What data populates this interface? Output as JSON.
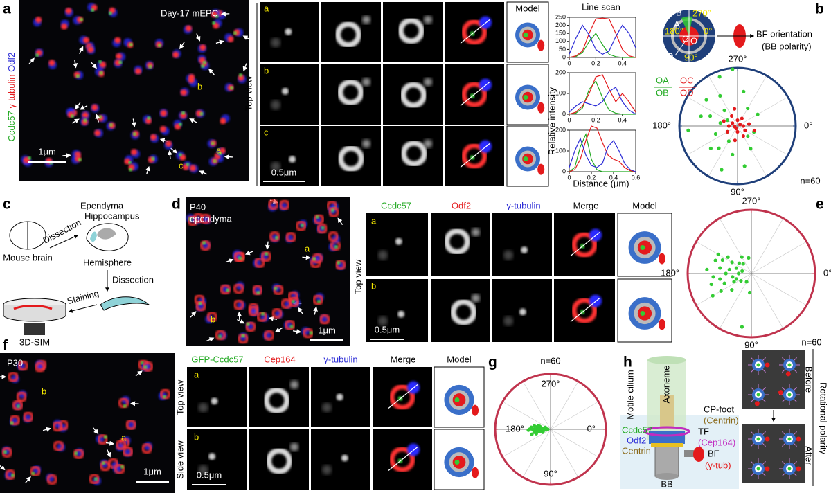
{
  "panel_a": {
    "label": "a",
    "stains": [
      "Ccdc57",
      "γ-tubulin",
      "Odf2"
    ],
    "title": "Day-17 mEPC",
    "cell_labels": [
      "b",
      "a",
      "c"
    ],
    "scale_bar": "1μm",
    "view": "Top view",
    "rows": [
      "a",
      "b",
      "c"
    ],
    "inset_scale_bar": "0.5μm",
    "model": "Model",
    "line_scan": {
      "title": "Line scan",
      "y_label": "Relative intensity",
      "x_label": "Distance (μm)",
      "charts": [
        {
          "type": "line",
          "x": [
            0,
            0.05,
            0.1,
            0.15,
            0.2,
            0.25,
            0.3,
            0.35,
            0.4,
            0.45,
            0.5
          ],
          "xlim": [
            0,
            0.5
          ],
          "xticks": [
            0,
            0.2,
            0.4
          ],
          "ylim": [
            0,
            250
          ],
          "yticks": [
            0,
            50,
            100,
            150,
            200,
            250
          ],
          "series": [
            {
              "color": "#22aa22",
              "values": [
                0,
                5,
                30,
                100,
                150,
                80,
                20,
                5,
                0,
                0,
                0
              ]
            },
            {
              "color": "#e41a1c",
              "values": [
                0,
                10,
                40,
                150,
                240,
                245,
                240,
                150,
                50,
                10,
                0
              ]
            },
            {
              "color": "#2b2bd6",
              "values": [
                20,
                120,
                200,
                140,
                50,
                20,
                40,
                130,
                200,
                150,
                60
              ]
            }
          ]
        },
        {
          "type": "line",
          "x": [
            0,
            0.05,
            0.1,
            0.15,
            0.2,
            0.25,
            0.3,
            0.35,
            0.4,
            0.45,
            0.5
          ],
          "xlim": [
            0,
            0.5
          ],
          "xticks": [
            0,
            0.2,
            0.4
          ],
          "ylim": [
            0,
            200
          ],
          "yticks": [
            0,
            100,
            200
          ],
          "series": [
            {
              "color": "#22aa22",
              "values": [
                0,
                5,
                30,
                120,
                160,
                80,
                20,
                5,
                0,
                0,
                0
              ]
            },
            {
              "color": "#e41a1c",
              "values": [
                0,
                10,
                40,
                100,
                180,
                190,
                120,
                60,
                100,
                60,
                10
              ]
            },
            {
              "color": "#2b2bd6",
              "values": [
                10,
                40,
                60,
                50,
                40,
                60,
                110,
                130,
                60,
                20,
                0
              ]
            }
          ]
        },
        {
          "type": "line",
          "x": [
            0,
            0.05,
            0.1,
            0.15,
            0.2,
            0.25,
            0.3,
            0.35,
            0.4,
            0.45,
            0.5,
            0.55,
            0.6
          ],
          "xlim": [
            0,
            0.6
          ],
          "xticks": [
            0,
            0.2,
            0.4,
            0.6
          ],
          "ylim": [
            0,
            200
          ],
          "yticks": [
            0,
            100,
            200
          ],
          "series": [
            {
              "color": "#22aa22",
              "values": [
                0,
                20,
                120,
                180,
                60,
                10,
                0,
                0,
                0,
                0,
                0,
                0,
                0
              ]
            },
            {
              "color": "#e41a1c",
              "values": [
                0,
                10,
                60,
                150,
                220,
                210,
                140,
                80,
                60,
                50,
                20,
                5,
                0
              ]
            },
            {
              "color": "#2b2bd6",
              "values": [
                20,
                100,
                160,
                80,
                30,
                20,
                40,
                120,
                150,
                100,
                40,
                10,
                0
              ]
            }
          ]
        }
      ]
    }
  },
  "panel_b": {
    "label": "b",
    "diagram": {
      "angles": [
        "270°",
        "180°",
        "0°",
        "90°"
      ],
      "points": [
        "B",
        "A",
        "C",
        "O",
        "D"
      ],
      "caption": [
        "BF orientation",
        "(BB polarity)"
      ]
    },
    "legend": [
      {
        "numerator": "OA",
        "denominator": "OB"
      },
      {
        "numerator": "OC",
        "denominator": "OD"
      }
    ],
    "chart": {
      "type": "polar-scatter",
      "ring_color": "#1f3f7a",
      "rlim": [
        0,
        1
      ],
      "annotation": "n=60",
      "angle_ticks": [
        {
          "value": 270,
          "label": "270°"
        },
        {
          "value": 180,
          "label": "180°"
        },
        {
          "value": 0,
          "label": "0°"
        },
        {
          "value": 90,
          "label": "90°"
        }
      ],
      "series": [
        {
          "color": "#33cc33",
          "angle": [
            200,
            220,
            160,
            240,
            130,
            300,
            20,
            45,
            100,
            110,
            175,
            190,
            250,
            280,
            330,
            60,
            80,
            150,
            210,
            230,
            120,
            140,
            195,
            265
          ],
          "radius": [
            0.5,
            0.7,
            0.4,
            0.6,
            0.5,
            0.35,
            0.3,
            0.25,
            0.5,
            0.8,
            0.85,
            0.3,
            0.9,
            0.6,
            0.4,
            0.45,
            0.7,
            0.2,
            0.2,
            0.35,
            0.3,
            0.6,
            0.65,
            0.98
          ]
        },
        {
          "color": "#e41a1c",
          "angle": [
            0,
            30,
            60,
            90,
            120,
            150,
            180,
            210,
            240,
            270,
            300,
            330,
            15,
            100,
            200,
            260,
            170,
            350
          ],
          "radius": [
            0.1,
            0.15,
            0.2,
            0.1,
            0.05,
            0.2,
            0.15,
            0.1,
            0.2,
            0.1,
            0.15,
            0.05,
            0.3,
            0.25,
            0.25,
            0.3,
            0.05,
            0.2
          ]
        }
      ]
    }
  },
  "panel_c": {
    "label": "c",
    "mouse_brain": "Mouse brain",
    "dissection_1": "Dissection",
    "ependyma": "Ependyma",
    "hippocampus": "Hippocampus",
    "hemisphere": "Hemisphere",
    "dissection_2": "Dissection",
    "staining": "Staining",
    "microscopy": "3D-SIM"
  },
  "panel_d": {
    "label": "d",
    "title": [
      "P40",
      "ependyma"
    ],
    "cell_labels": [
      "a",
      "b"
    ],
    "scale_bar": "1μm",
    "columns": [
      "Ccdc57",
      "Odf2",
      "γ-tubulin",
      "Merge",
      "Model"
    ],
    "view": "Top view",
    "rows": [
      "a",
      "b"
    ],
    "inset_scale_bar": "0.5μm"
  },
  "panel_e": {
    "label": "e",
    "chart": {
      "type": "polar-scatter",
      "ring_color": "#c0334d",
      "rlim": [
        0,
        1
      ],
      "annotation": "n=60",
      "angle_ticks": [
        {
          "value": 270,
          "label": "270°"
        },
        {
          "value": 180,
          "label": "180°"
        },
        {
          "value": 0,
          "label": "0°"
        },
        {
          "value": 90,
          "label": "90°"
        }
      ],
      "series": [
        {
          "color": "#33cc33",
          "angle": [
            180,
            190,
            170,
            200,
            160,
            210,
            150,
            220,
            140,
            230,
            185,
            175,
            195,
            165,
            205,
            155,
            215,
            145,
            120,
            240,
            180,
            170,
            190,
            200,
            160,
            100,
            260,
            210,
            150,
            95
          ],
          "radius": [
            0.4,
            0.5,
            0.3,
            0.6,
            0.45,
            0.35,
            0.55,
            0.25,
            0.4,
            0.2,
            0.7,
            0.6,
            0.15,
            0.65,
            0.5,
            0.3,
            0.45,
            0.2,
            0.15,
            0.3,
            0.2,
            0.5,
            0.35,
            0.25,
            0.25,
            0.85,
            0.25,
            0.6,
            0.7,
            0.3
          ]
        }
      ]
    }
  },
  "panel_f": {
    "label": "f",
    "title": "P30",
    "cell_labels": [
      "b",
      "a"
    ],
    "scale_bar": "1μm",
    "columns": [
      "GFP-Ccdc57",
      "Cep164",
      "γ-tubulin",
      "Merge",
      "Model"
    ],
    "views": [
      "Top view",
      "Side view"
    ],
    "rows": [
      "a",
      "b"
    ],
    "inset_scale_bar": "0.5μm"
  },
  "panel_g": {
    "label": "g",
    "chart": {
      "type": "polar-scatter",
      "ring_color": "#c0334d",
      "rlim": [
        0,
        1
      ],
      "annotation": "n=60",
      "angle_ticks": [
        {
          "value": 270,
          "label": "270°"
        },
        {
          "value": 180,
          "label": "180°"
        },
        {
          "value": 0,
          "label": "0°"
        },
        {
          "value": 90,
          "label": "90°"
        }
      ],
      "series": [
        {
          "color": "#33cc33",
          "angle": [
            180,
            175,
            185,
            170,
            190,
            165,
            195,
            180,
            172,
            188,
            178,
            182,
            168,
            192,
            176,
            184,
            180,
            174,
            186,
            160,
            200,
            179,
            181,
            177,
            183,
            171,
            189,
            180,
            163,
            197
          ],
          "radius": [
            0.1,
            0.2,
            0.15,
            0.3,
            0.25,
            0.35,
            0.2,
            0.3,
            0.12,
            0.1,
            0.4,
            0.05,
            0.2,
            0.3,
            0.25,
            0.18,
            0.22,
            0.08,
            0.35,
            0.15,
            0.1,
            0.28,
            0.33,
            0.16,
            0.07,
            0.24,
            0.2,
            0.38,
            0.27,
            0.23
          ]
        }
      ]
    }
  },
  "panel_h": {
    "label": "h",
    "motile_cilium": "Motile cilium",
    "axoneme": "Axoneme",
    "cp_foot": "CP-foot",
    "cp_foot_marker": "(Centrin)",
    "tf": "TF",
    "tf_marker": "(Cep164)",
    "bf": "BF",
    "bf_marker": "(γ-tub)",
    "ccdc57": "Ccdc57",
    "odf2": "Odf2",
    "centrin": "Centrin",
    "bb": "BB",
    "before": "Before",
    "after": "After",
    "title": "Rotational polarity"
  }
}
